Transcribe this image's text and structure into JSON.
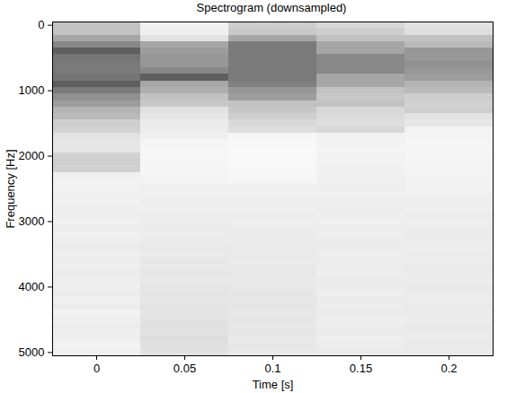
{
  "chart_data": {
    "type": "heatmap",
    "title": "Spectrogram (downsampled)",
    "x_label": "Time [s]",
    "y_label": "Frequency [Hz]",
    "x": [
      0,
      0.05,
      0.1,
      0.15,
      0.2
    ],
    "y": [
      0,
      100,
      200,
      300,
      400,
      500,
      600,
      700,
      800,
      900,
      1000,
      1100,
      1200,
      1300,
      1400,
      1500,
      1600,
      1700,
      1800,
      1900,
      2000,
      2100,
      2200,
      2300,
      2400,
      2500,
      2600,
      2700,
      2800,
      2900,
      3000,
      3100,
      3200,
      3300,
      3400,
      3500,
      3600,
      3700,
      3800,
      3900,
      4000,
      4100,
      4200,
      4300,
      4400,
      4500,
      4600,
      4700,
      4800,
      4900,
      5000
    ],
    "cells": [
      [
        0.35,
        0.35,
        0.45,
        0.55,
        0.7,
        0.62,
        0.6,
        0.6,
        0.62,
        0.7,
        0.6,
        0.52,
        0.48,
        0.4,
        0.38,
        0.3,
        0.28,
        0.2,
        0.18,
        0.18,
        0.28,
        0.3,
        0.28,
        0.12,
        0.1,
        0.1,
        0.12,
        0.1,
        0.12,
        0.13,
        0.12,
        0.14,
        0.12,
        0.13,
        0.15,
        0.12,
        0.14,
        0.12,
        0.15,
        0.13,
        0.12,
        0.14,
        0.12,
        0.15,
        0.1,
        0.12,
        0.14,
        0.12,
        0.13,
        0.1,
        0.12
      ],
      [
        0.1,
        0.12,
        0.2,
        0.45,
        0.48,
        0.5,
        0.5,
        0.55,
        0.7,
        0.45,
        0.42,
        0.35,
        0.32,
        0.2,
        0.18,
        0.15,
        0.14,
        0.12,
        0.08,
        0.07,
        0.07,
        0.08,
        0.08,
        0.09,
        0.1,
        0.12,
        0.12,
        0.13,
        0.12,
        0.14,
        0.14,
        0.15,
        0.14,
        0.15,
        0.16,
        0.15,
        0.17,
        0.16,
        0.18,
        0.17,
        0.18,
        0.19,
        0.18,
        0.2,
        0.19,
        0.2,
        0.21,
        0.2,
        0.22,
        0.21,
        0.2
      ],
      [
        0.3,
        0.32,
        0.45,
        0.6,
        0.6,
        0.6,
        0.6,
        0.6,
        0.6,
        0.58,
        0.5,
        0.48,
        0.35,
        0.33,
        0.3,
        0.25,
        0.22,
        0.08,
        0.06,
        0.05,
        0.05,
        0.06,
        0.06,
        0.07,
        0.08,
        0.12,
        0.12,
        0.13,
        0.12,
        0.14,
        0.13,
        0.14,
        0.15,
        0.14,
        0.15,
        0.16,
        0.15,
        0.16,
        0.17,
        0.16,
        0.17,
        0.18,
        0.17,
        0.18,
        0.17,
        0.18,
        0.17,
        0.18,
        0.16,
        0.17,
        0.16
      ],
      [
        0.25,
        0.3,
        0.35,
        0.45,
        0.45,
        0.55,
        0.55,
        0.55,
        0.45,
        0.45,
        0.35,
        0.33,
        0.35,
        0.25,
        0.24,
        0.22,
        0.25,
        0.1,
        0.1,
        0.09,
        0.1,
        0.1,
        0.11,
        0.12,
        0.12,
        0.13,
        0.12,
        0.13,
        0.14,
        0.13,
        0.12,
        0.14,
        0.13,
        0.15,
        0.14,
        0.13,
        0.15,
        0.14,
        0.13,
        0.15,
        0.14,
        0.13,
        0.15,
        0.14,
        0.15,
        0.13,
        0.14,
        0.15,
        0.13,
        0.14,
        0.15
      ],
      [
        0.2,
        0.22,
        0.35,
        0.38,
        0.5,
        0.5,
        0.52,
        0.5,
        0.48,
        0.4,
        0.38,
        0.3,
        0.28,
        0.3,
        0.2,
        0.18,
        0.1,
        0.09,
        0.08,
        0.08,
        0.08,
        0.09,
        0.09,
        0.1,
        0.1,
        0.1,
        0.12,
        0.13,
        0.12,
        0.14,
        0.13,
        0.14,
        0.15,
        0.14,
        0.13,
        0.15,
        0.14,
        0.16,
        0.15,
        0.14,
        0.16,
        0.15,
        0.14,
        0.16,
        0.15,
        0.14,
        0.16,
        0.15,
        0.14,
        0.16,
        0.15
      ]
    ],
    "zlim": [
      0,
      1
    ],
    "color": "greys",
    "xlim": [
      -0.025,
      0.225
    ],
    "ylim": [
      -50,
      5050
    ],
    "xticks": [
      0,
      0.05,
      0.1,
      0.15,
      0.2
    ],
    "yticks": [
      0,
      1000,
      2000,
      3000,
      4000,
      5000
    ],
    "grid": false
  }
}
